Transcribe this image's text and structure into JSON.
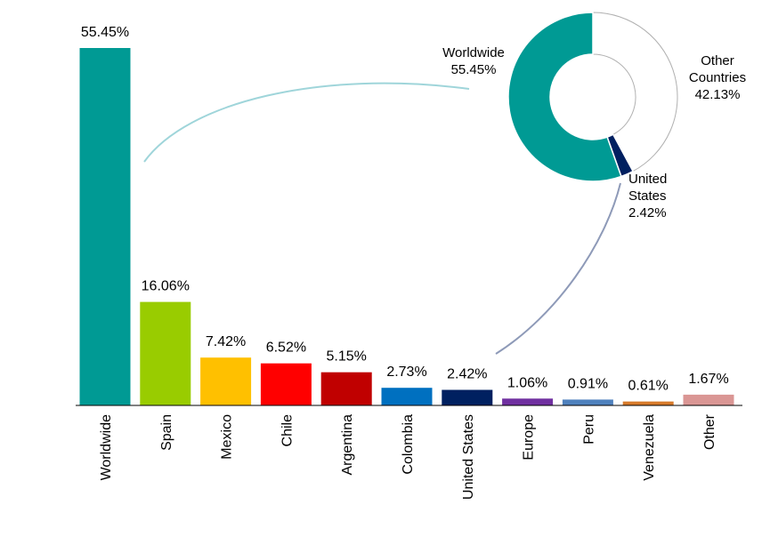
{
  "chart_data": [
    {
      "type": "bar",
      "categories": [
        "Worldwide",
        "Spain",
        "Mexico",
        "Chile",
        "Argentina",
        "Colombia",
        "United States",
        "Europe",
        "Peru",
        "Venezuela",
        "Other"
      ],
      "values": [
        55.45,
        16.06,
        7.42,
        6.52,
        5.15,
        2.73,
        2.42,
        1.06,
        0.91,
        0.61,
        1.67
      ],
      "value_labels": [
        "55.45%",
        "16.06%",
        "7.42%",
        "6.52%",
        "5.15%",
        "2.73%",
        "2.42%",
        "1.06%",
        "0.91%",
        "0.61%",
        "1.67%"
      ],
      "colors": [
        "#009a94",
        "#99cc00",
        "#ffc000",
        "#ff0000",
        "#c00000",
        "#0070c0",
        "#002060",
        "#7030a0",
        "#4f81bd",
        "#d77a2a",
        "#da9694"
      ],
      "ylim": [
        0,
        55.45
      ],
      "grid": false,
      "legend": "none"
    },
    {
      "type": "pie",
      "style": "donut",
      "slices": [
        {
          "label_lines": [
            "Worldwide",
            "55.45%"
          ],
          "value": 55.45,
          "color": "#009a94"
        },
        {
          "label_lines": [
            "United",
            "States",
            "2.42%"
          ],
          "value": 2.42,
          "color": "#002060"
        },
        {
          "label_lines": [
            "Other",
            "Countries",
            "42.13%"
          ],
          "value": 42.13,
          "color": "#ffffff"
        }
      ]
    }
  ],
  "colors": {
    "connector_worldwide": "#9fd5da",
    "connector_us": "#8e9ab8",
    "axis": "#000000",
    "slice_outline": "#b0b0b0"
  }
}
